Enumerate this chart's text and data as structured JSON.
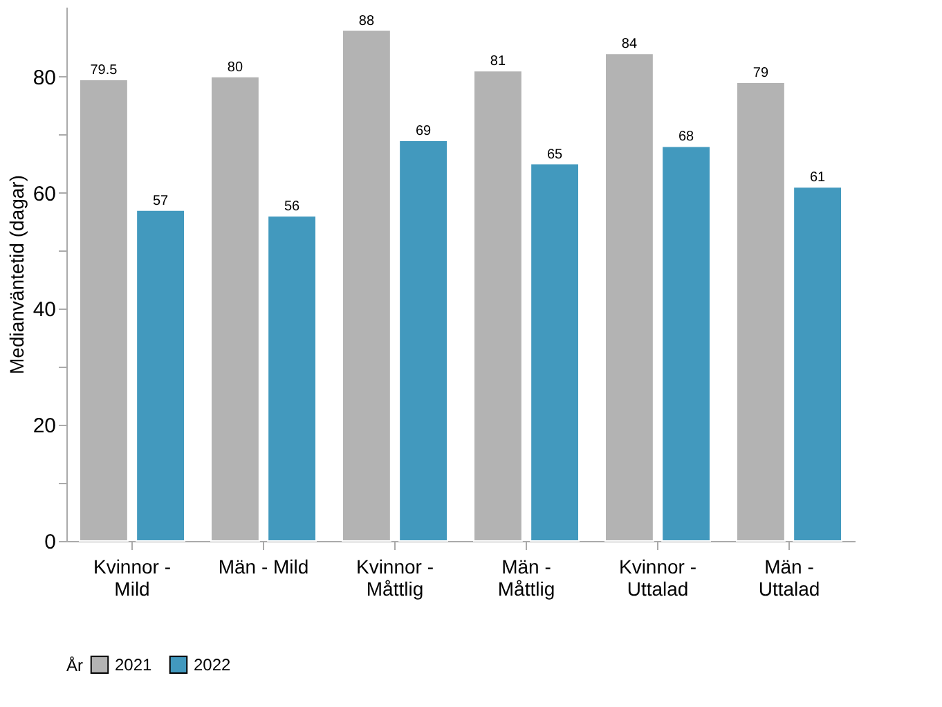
{
  "chart_data": {
    "type": "bar",
    "ylabel": "Medianväntetid (dagar)",
    "legend_title": "År",
    "categories": [
      "Kvinnor - Mild",
      "Män - Mild",
      "Kvinnor - Måttlig",
      "Män - Måttlig",
      "Kvinnor - Uttalad",
      "Män - Uttalad"
    ],
    "series": [
      {
        "name": "2021",
        "color": "#b3b3b3",
        "values": [
          79.5,
          80,
          88,
          81,
          84,
          79
        ]
      },
      {
        "name": "2022",
        "color": "#4299be",
        "values": [
          57,
          56,
          69,
          65,
          68,
          61
        ]
      }
    ],
    "ylim": [
      0,
      92
    ],
    "yticks": [
      0,
      {
        "value": 10,
        "label": null
      },
      20,
      {
        "value": 30,
        "label": null
      },
      40,
      {
        "value": 50,
        "label": null
      },
      60,
      {
        "value": 70,
        "label": null
      },
      80
    ],
    "data_labels": true,
    "grid": false,
    "legend": "bottom"
  }
}
